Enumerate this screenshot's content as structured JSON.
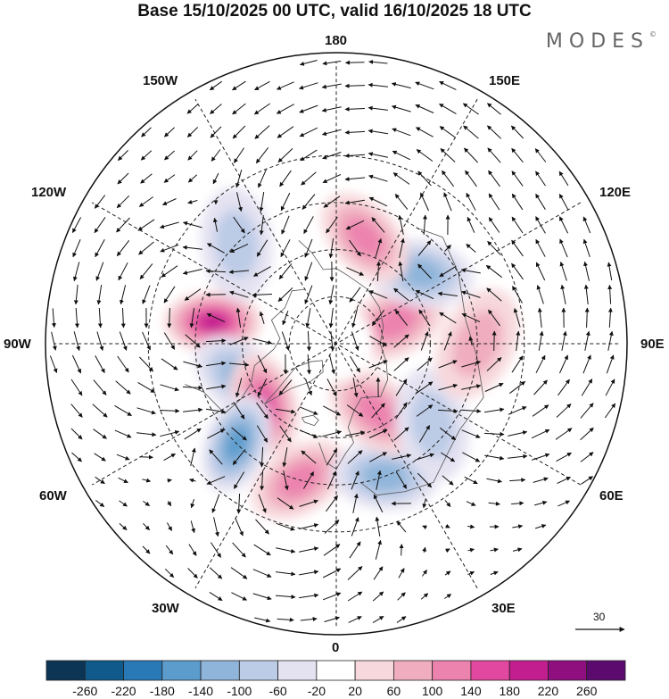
{
  "title": "Base 15/10/2025 00 UTC, valid 16/10/2025 18 UTC",
  "brand": "MODES",
  "brand_mark": "©",
  "longitude_labels": {
    "top": "180",
    "top_left": "150W",
    "top_right": "150E",
    "upper_left": "120W",
    "upper_right": "120E",
    "left": "90W",
    "right": "90E",
    "lower_left": "60W",
    "lower_right": "60E",
    "bottom_left": "30W",
    "bottom_right": "30E",
    "bottom": "0"
  },
  "reference_vector": {
    "label": "30"
  },
  "colorbar": {
    "colors": [
      "#0c3555",
      "#0f5a8a",
      "#2879b5",
      "#5b9ccd",
      "#8fb5da",
      "#bccbe6",
      "#e4e2f1",
      "#ffffff",
      "#f7d8dc",
      "#f0adc0",
      "#ec83ae",
      "#e2489f",
      "#c21e8f",
      "#8e0f7d",
      "#5d0a6f"
    ],
    "ticks": [
      "-260",
      "-220",
      "-180",
      "-140",
      "-100",
      "-60",
      "-20",
      "20",
      "60",
      "100",
      "140",
      "180",
      "220",
      "260"
    ]
  },
  "anomaly_features": [
    {
      "label": "+",
      "value": 200,
      "lon": "100W",
      "lat": 50
    },
    {
      "label": "-",
      "value": -140,
      "lon": "70W",
      "lat": 58
    },
    {
      "label": "+",
      "value": 160,
      "lon": "50W",
      "lat": 60
    },
    {
      "label": "-",
      "value": -180,
      "lon": "45W",
      "lat": 45
    },
    {
      "label": "+",
      "value": 150,
      "lon": "15W",
      "lat": 45
    },
    {
      "label": "-",
      "value": -140,
      "lon": "20E",
      "lat": 45
    },
    {
      "label": "+",
      "value": 140,
      "lon": "30E",
      "lat": 65
    },
    {
      "label": "-",
      "value": -100,
      "lon": "50E",
      "lat": 50
    },
    {
      "label": "+",
      "value": 80,
      "lon": "90E",
      "lat": 45
    },
    {
      "label": "+",
      "value": 140,
      "lon": "110E",
      "lat": 70
    },
    {
      "label": "-",
      "value": -140,
      "lon": "130E",
      "lat": 55
    },
    {
      "label": "+",
      "value": 150,
      "lon": "165E",
      "lat": 55
    },
    {
      "label": "-",
      "value": -100,
      "lon": "135W",
      "lat": 45
    }
  ]
}
